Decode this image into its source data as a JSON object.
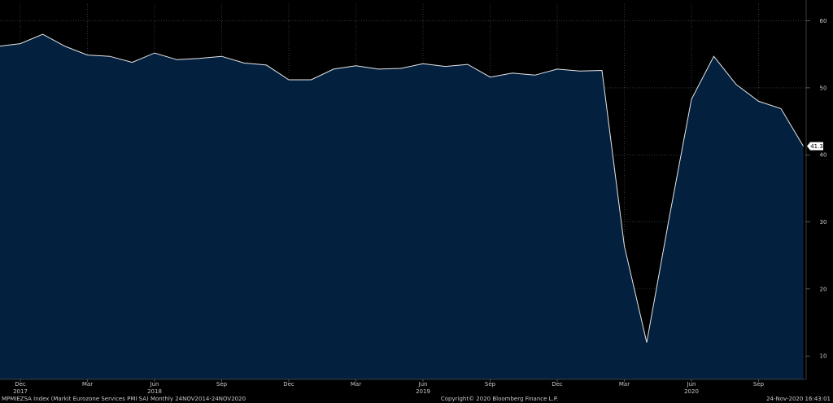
{
  "chart_data": {
    "type": "area",
    "x": [
      "2017-11",
      "2017-12",
      "2018-01",
      "2018-02",
      "2018-03",
      "2018-04",
      "2018-05",
      "2018-06",
      "2018-07",
      "2018-08",
      "2018-09",
      "2018-10",
      "2018-11",
      "2018-12",
      "2019-01",
      "2019-02",
      "2019-03",
      "2019-04",
      "2019-05",
      "2019-06",
      "2019-07",
      "2019-08",
      "2019-09",
      "2019-10",
      "2019-11",
      "2019-12",
      "2020-01",
      "2020-02",
      "2020-03",
      "2020-04",
      "2020-05",
      "2020-06",
      "2020-07",
      "2020-08",
      "2020-09",
      "2020-10",
      "2020-11"
    ],
    "values": [
      56.2,
      56.6,
      58.0,
      56.2,
      54.9,
      54.7,
      53.8,
      55.2,
      54.2,
      54.4,
      54.7,
      53.7,
      53.4,
      51.2,
      51.2,
      52.8,
      53.3,
      52.8,
      52.9,
      53.6,
      53.2,
      53.5,
      51.6,
      52.2,
      51.9,
      52.8,
      52.5,
      52.6,
      26.4,
      12.0,
      30.5,
      48.3,
      54.7,
      50.5,
      48.0,
      46.9,
      41.3
    ],
    "last_value_label": "41.3",
    "ylim": [
      6.5,
      62.5
    ],
    "y_ticks": [
      10,
      20,
      30,
      40,
      50,
      60
    ],
    "y_tick_labels": [
      "10",
      "20",
      "30",
      "40",
      "50",
      "60"
    ],
    "x_ticks": [
      {
        "at": "2017-12",
        "label": "Dec",
        "year": "2017"
      },
      {
        "at": "2018-03",
        "label": "Mar",
        "year": ""
      },
      {
        "at": "2018-06",
        "label": "Jun",
        "year": "2018"
      },
      {
        "at": "2018-09",
        "label": "Sep",
        "year": ""
      },
      {
        "at": "2018-12",
        "label": "Dec",
        "year": ""
      },
      {
        "at": "2019-03",
        "label": "Mar",
        "year": ""
      },
      {
        "at": "2019-06",
        "label": "Jun",
        "year": "2019"
      },
      {
        "at": "2019-09",
        "label": "Sep",
        "year": ""
      },
      {
        "at": "2019-12",
        "label": "Dec",
        "year": ""
      },
      {
        "at": "2020-03",
        "label": "Mar",
        "year": ""
      },
      {
        "at": "2020-06",
        "label": "Jun",
        "year": "2020"
      },
      {
        "at": "2020-09",
        "label": "Sep",
        "year": ""
      }
    ],
    "grid": true,
    "colors": {
      "background": "#000000",
      "fill": "#04203f",
      "line": "#e6e6e6",
      "grid": "#4a5a6a",
      "text": "#c8c8c8",
      "label_bg": "#ffffff"
    }
  },
  "footer": {
    "left": "MPMIEZSA Index (Markit Eurozone Services PMI SA)  Monthly 24NOV2014-24NOV2020",
    "center": "Copyright© 2020 Bloomberg Finance L.P.",
    "right": "24-Nov-2020 16:43:01"
  }
}
